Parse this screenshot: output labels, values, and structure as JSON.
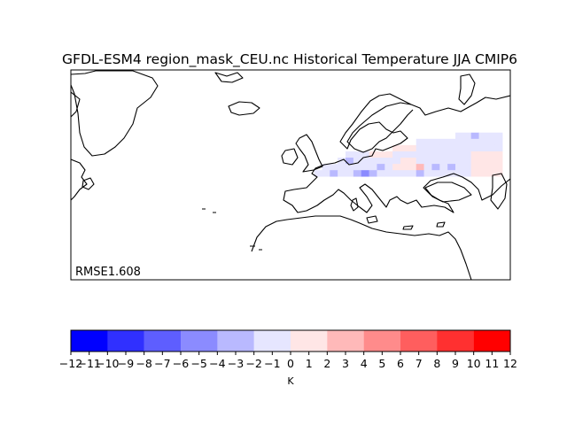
{
  "title": "GFDL-ESM4 region_mask_CEU.nc Historical Temperature JJA CMIP6",
  "annotation": "RMSE1.608",
  "colorbar": {
    "unit_label": "K",
    "ticks": [
      "−12",
      "−11",
      "−10",
      "−9",
      "−8",
      "−7",
      "−6",
      "−5",
      "−4",
      "−3",
      "−2",
      "−1",
      "0",
      "1",
      "2",
      "3",
      "4",
      "5",
      "6",
      "7",
      "8",
      "9",
      "10",
      "11",
      "12"
    ],
    "bin_edges": [
      -12,
      -10,
      -8,
      -6,
      -4,
      -2,
      0,
      2,
      4,
      6,
      8,
      10,
      12
    ],
    "colors": [
      "#0000ff",
      "#3030ff",
      "#5e5eff",
      "#8b8bff",
      "#b9b9ff",
      "#e6e6ff",
      "#ffe6e6",
      "#ffb9b9",
      "#ff8b8b",
      "#ff5e5e",
      "#ff3030",
      "#ff0000"
    ]
  },
  "map": {
    "projection": "PlateCarree",
    "region": "Europe / North Atlantic / Mediterranean",
    "lon_range": [
      -80,
      60
    ],
    "lat_range": [
      15,
      82
    ]
  },
  "chart_data": {
    "type": "heatmap",
    "title": "GFDL-ESM4 region_mask_CEU.nc Historical Temperature JJA CMIP6",
    "colorbar_label": "K",
    "value_range": [
      -12,
      12
    ],
    "cell_size_deg": [
      2.5,
      2.0
    ],
    "cells": [
      {
        "lon": 43.75,
        "lat": 61,
        "value": -0.5
      },
      {
        "lon": 46.25,
        "lat": 61,
        "value": -0.5
      },
      {
        "lon": 48.75,
        "lat": 61,
        "value": -2.5
      },
      {
        "lon": 51.25,
        "lat": 61,
        "value": -0.5
      },
      {
        "lon": 53.75,
        "lat": 61,
        "value": -0.5
      },
      {
        "lon": 56.25,
        "lat": 61,
        "value": -0.5
      },
      {
        "lon": 31.25,
        "lat": 59,
        "value": -0.5
      },
      {
        "lon": 33.75,
        "lat": 59,
        "value": -0.5
      },
      {
        "lon": 36.25,
        "lat": 59,
        "value": -0.5
      },
      {
        "lon": 38.75,
        "lat": 59,
        "value": -0.5
      },
      {
        "lon": 41.25,
        "lat": 59,
        "value": -0.5
      },
      {
        "lon": 43.75,
        "lat": 59,
        "value": -0.5
      },
      {
        "lon": 46.25,
        "lat": 59,
        "value": -0.5
      },
      {
        "lon": 48.75,
        "lat": 59,
        "value": -0.5
      },
      {
        "lon": 51.25,
        "lat": 59,
        "value": -0.5
      },
      {
        "lon": 53.75,
        "lat": 59,
        "value": -0.5
      },
      {
        "lon": 56.25,
        "lat": 59,
        "value": -0.5
      },
      {
        "lon": 23.75,
        "lat": 57,
        "value": 0.5
      },
      {
        "lon": 26.25,
        "lat": 57,
        "value": 0.5
      },
      {
        "lon": 28.75,
        "lat": 57,
        "value": 0.5
      },
      {
        "lon": 31.25,
        "lat": 57,
        "value": -0.5
      },
      {
        "lon": 33.75,
        "lat": 57,
        "value": -0.5
      },
      {
        "lon": 36.25,
        "lat": 57,
        "value": -0.5
      },
      {
        "lon": 38.75,
        "lat": 57,
        "value": -0.5
      },
      {
        "lon": 41.25,
        "lat": 57,
        "value": -0.5
      },
      {
        "lon": 43.75,
        "lat": 57,
        "value": -0.5
      },
      {
        "lon": 46.25,
        "lat": 57,
        "value": -0.5
      },
      {
        "lon": 48.75,
        "lat": 57,
        "value": -0.5
      },
      {
        "lon": 51.25,
        "lat": 57,
        "value": -0.5
      },
      {
        "lon": 53.75,
        "lat": 57,
        "value": -0.5
      },
      {
        "lon": 56.25,
        "lat": 57,
        "value": -0.5
      },
      {
        "lon": 8.75,
        "lat": 55,
        "value": -0.5
      },
      {
        "lon": 11.25,
        "lat": 55,
        "value": -0.5
      },
      {
        "lon": 13.75,
        "lat": 55,
        "value": -0.5
      },
      {
        "lon": 16.25,
        "lat": 55,
        "value": 0.5
      },
      {
        "lon": 18.75,
        "lat": 55,
        "value": 0.5
      },
      {
        "lon": 21.25,
        "lat": 55,
        "value": 0.5
      },
      {
        "lon": 23.75,
        "lat": 55,
        "value": -0.5
      },
      {
        "lon": 26.25,
        "lat": 55,
        "value": -0.5
      },
      {
        "lon": 28.75,
        "lat": 55,
        "value": -0.5
      },
      {
        "lon": 31.25,
        "lat": 55,
        "value": -0.5
      },
      {
        "lon": 33.75,
        "lat": 55,
        "value": -0.5
      },
      {
        "lon": 36.25,
        "lat": 55,
        "value": -0.5
      },
      {
        "lon": 38.75,
        "lat": 55,
        "value": -0.5
      },
      {
        "lon": 41.25,
        "lat": 55,
        "value": -0.5
      },
      {
        "lon": 43.75,
        "lat": 55,
        "value": -0.5
      },
      {
        "lon": 46.25,
        "lat": 55,
        "value": -0.5
      },
      {
        "lon": 48.75,
        "lat": 55,
        "value": 0.5
      },
      {
        "lon": 51.25,
        "lat": 55,
        "value": 0.5
      },
      {
        "lon": 53.75,
        "lat": 55,
        "value": 0.5
      },
      {
        "lon": 56.25,
        "lat": 55,
        "value": 0.5
      },
      {
        "lon": 6.25,
        "lat": 53,
        "value": -0.5
      },
      {
        "lon": 8.75,
        "lat": 53,
        "value": -2.5
      },
      {
        "lon": 11.25,
        "lat": 53,
        "value": -0.5
      },
      {
        "lon": 13.75,
        "lat": 53,
        "value": -0.5
      },
      {
        "lon": 16.25,
        "lat": 53,
        "value": -0.5
      },
      {
        "lon": 18.75,
        "lat": 53,
        "value": -0.5
      },
      {
        "lon": 21.25,
        "lat": 53,
        "value": -0.5
      },
      {
        "lon": 23.75,
        "lat": 53,
        "value": -0.5
      },
      {
        "lon": 26.25,
        "lat": 53,
        "value": 0.5
      },
      {
        "lon": 28.75,
        "lat": 53,
        "value": 0.5
      },
      {
        "lon": 31.25,
        "lat": 53,
        "value": -0.5
      },
      {
        "lon": 33.75,
        "lat": 53,
        "value": -0.5
      },
      {
        "lon": 36.25,
        "lat": 53,
        "value": -0.5
      },
      {
        "lon": 38.75,
        "lat": 53,
        "value": -0.5
      },
      {
        "lon": 41.25,
        "lat": 53,
        "value": -0.5
      },
      {
        "lon": 43.75,
        "lat": 53,
        "value": -0.5
      },
      {
        "lon": 46.25,
        "lat": 53,
        "value": -0.5
      },
      {
        "lon": 48.75,
        "lat": 53,
        "value": 0.5
      },
      {
        "lon": 51.25,
        "lat": 53,
        "value": 0.5
      },
      {
        "lon": 53.75,
        "lat": 53,
        "value": 0.5
      },
      {
        "lon": 56.25,
        "lat": 53,
        "value": 0.5
      },
      {
        "lon": 1.25,
        "lat": 51,
        "value": -0.5
      },
      {
        "lon": 3.75,
        "lat": 51,
        "value": -0.5
      },
      {
        "lon": 6.25,
        "lat": 51,
        "value": -0.5
      },
      {
        "lon": 8.75,
        "lat": 51,
        "value": -0.5
      },
      {
        "lon": 11.25,
        "lat": 51,
        "value": -0.5
      },
      {
        "lon": 13.75,
        "lat": 51,
        "value": -0.5
      },
      {
        "lon": 16.25,
        "lat": 51,
        "value": -0.5
      },
      {
        "lon": 18.75,
        "lat": 51,
        "value": -2.5
      },
      {
        "lon": 21.25,
        "lat": 51,
        "value": -0.5
      },
      {
        "lon": 23.75,
        "lat": 51,
        "value": 0.5
      },
      {
        "lon": 26.25,
        "lat": 51,
        "value": 0.5
      },
      {
        "lon": 28.75,
        "lat": 51,
        "value": 0.5
      },
      {
        "lon": 31.25,
        "lat": 51,
        "value": 2.5
      },
      {
        "lon": 33.75,
        "lat": 51,
        "value": -0.5
      },
      {
        "lon": 36.25,
        "lat": 51,
        "value": -2.5
      },
      {
        "lon": 38.75,
        "lat": 51,
        "value": -0.5
      },
      {
        "lon": 41.25,
        "lat": 51,
        "value": -2.5
      },
      {
        "lon": 43.75,
        "lat": 51,
        "value": -0.5
      },
      {
        "lon": 46.25,
        "lat": 51,
        "value": -0.5
      },
      {
        "lon": 48.75,
        "lat": 51,
        "value": 0.5
      },
      {
        "lon": 51.25,
        "lat": 51,
        "value": 0.5
      },
      {
        "lon": 53.75,
        "lat": 51,
        "value": 0.5
      },
      {
        "lon": 56.25,
        "lat": 51,
        "value": 0.5
      },
      {
        "lon": -1.25,
        "lat": 49,
        "value": -0.5
      },
      {
        "lon": 1.25,
        "lat": 49,
        "value": -0.5
      },
      {
        "lon": 3.75,
        "lat": 49,
        "value": -2.5
      },
      {
        "lon": 6.25,
        "lat": 49,
        "value": -0.5
      },
      {
        "lon": 8.75,
        "lat": 49,
        "value": -0.5
      },
      {
        "lon": 11.25,
        "lat": 49,
        "value": -2.5
      },
      {
        "lon": 13.75,
        "lat": 49,
        "value": -5.0
      },
      {
        "lon": 16.25,
        "lat": 49,
        "value": -3.0
      },
      {
        "lon": 18.75,
        "lat": 49,
        "value": -0.5
      },
      {
        "lon": 21.25,
        "lat": 49,
        "value": -0.5
      },
      {
        "lon": 23.75,
        "lat": 49,
        "value": -0.5
      },
      {
        "lon": 26.25,
        "lat": 49,
        "value": -0.5
      },
      {
        "lon": 28.75,
        "lat": 49,
        "value": -0.5
      },
      {
        "lon": 31.25,
        "lat": 49,
        "value": -2.5
      },
      {
        "lon": 33.75,
        "lat": 49,
        "value": -0.5
      },
      {
        "lon": 36.25,
        "lat": 49,
        "value": -0.5
      },
      {
        "lon": 38.75,
        "lat": 49,
        "value": -0.5
      },
      {
        "lon": 41.25,
        "lat": 49,
        "value": -0.5
      },
      {
        "lon": 43.75,
        "lat": 49,
        "value": -0.5
      },
      {
        "lon": 46.25,
        "lat": 49,
        "value": -0.5
      },
      {
        "lon": 48.75,
        "lat": 49,
        "value": 0.5
      },
      {
        "lon": 51.25,
        "lat": 49,
        "value": 0.5
      },
      {
        "lon": 53.75,
        "lat": 49,
        "value": 0.5
      },
      {
        "lon": 56.25,
        "lat": 49,
        "value": 0.5
      }
    ]
  }
}
